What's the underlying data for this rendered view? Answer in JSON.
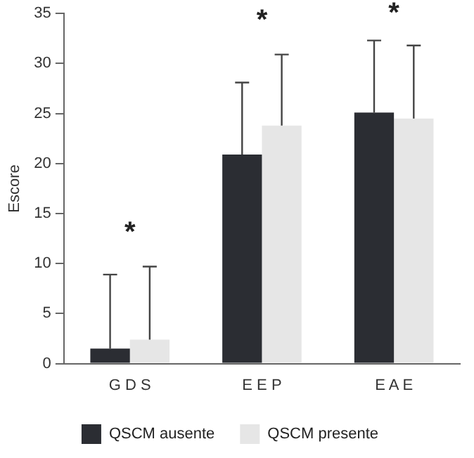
{
  "chart_data": {
    "type": "bar",
    "ylabel": "Escore",
    "categories": [
      "G D S",
      "E E P",
      "E A E"
    ],
    "series": [
      {
        "name": "QSCM ausente",
        "color": "#2b2d33",
        "values": [
          1.5,
          20.9,
          25.1
        ],
        "errors": [
          [
            1.5,
            8.9
          ],
          [
            20.9,
            28.1
          ],
          [
            25.1,
            32.3
          ]
        ]
      },
      {
        "name": "QSCM presente",
        "color": "#e6e6e6",
        "values": [
          2.4,
          23.8,
          24.5
        ],
        "errors": [
          [
            2.4,
            9.7
          ],
          [
            23.8,
            30.9
          ],
          [
            24.5,
            31.8
          ]
        ]
      }
    ],
    "ylim": [
      0,
      35
    ],
    "yticks": [
      0,
      5,
      10,
      15,
      20,
      25,
      30,
      35
    ],
    "grid": false,
    "legend": "bottom",
    "annotations": [
      "*",
      "*",
      "*"
    ]
  }
}
